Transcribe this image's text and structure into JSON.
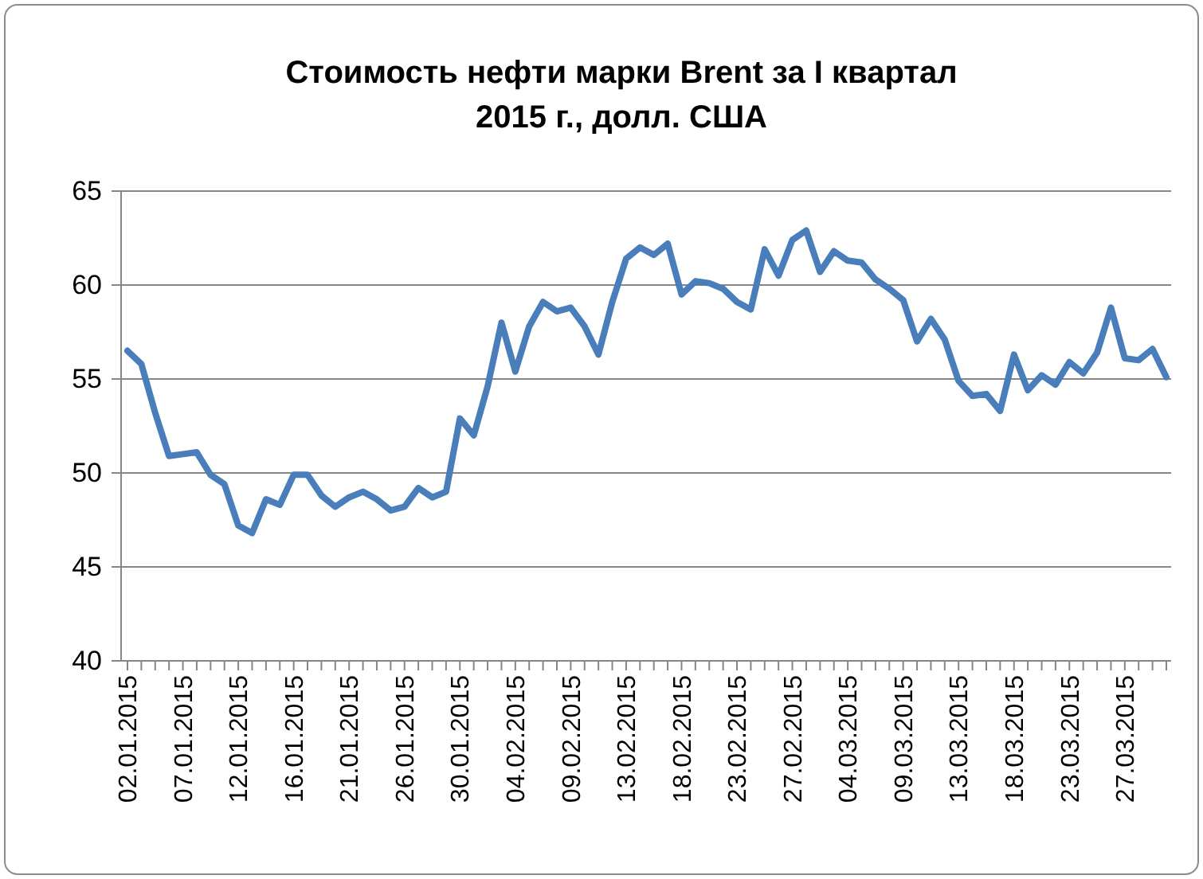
{
  "chart_data": {
    "type": "line",
    "title": "Стоимость нефти марки Brent за I квартал\n2015 г., долл. США",
    "categories": [
      "02.01.2015",
      null,
      null,
      null,
      "07.01.2015",
      null,
      null,
      null,
      "12.01.2015",
      null,
      null,
      null,
      "16.01.2015",
      null,
      null,
      null,
      "21.01.2015",
      null,
      null,
      null,
      "26.01.2015",
      null,
      null,
      null,
      "30.01.2015",
      null,
      null,
      null,
      "04.02.2015",
      null,
      null,
      null,
      "09.02.2015",
      null,
      null,
      null,
      "13.02.2015",
      null,
      null,
      null,
      "18.02.2015",
      null,
      null,
      null,
      "23.02.2015",
      null,
      null,
      null,
      "27.02.2015",
      null,
      null,
      null,
      "04.03.2015",
      null,
      null,
      null,
      "09.03.2015",
      null,
      null,
      null,
      "13.03.2015",
      null,
      null,
      null,
      "18.03.2015",
      null,
      null,
      null,
      "23.03.2015",
      null,
      null,
      null,
      "27.03.2015",
      null,
      null,
      null
    ],
    "series": [
      {
        "color": "#4a7ebb",
        "values": [
          56.5,
          55.8,
          53.2,
          50.9,
          51.0,
          51.1,
          49.9,
          49.4,
          47.2,
          46.8,
          48.6,
          48.3,
          49.9,
          49.9,
          48.8,
          48.2,
          48.7,
          49.0,
          48.6,
          48.0,
          48.2,
          49.2,
          48.7,
          49.0,
          52.9,
          52.0,
          54.6,
          58.0,
          55.4,
          57.8,
          59.1,
          58.6,
          58.8,
          57.8,
          56.3,
          59.1,
          61.4,
          62.0,
          61.6,
          62.2,
          59.5,
          60.2,
          60.1,
          59.8,
          59.1,
          58.7,
          61.9,
          60.5,
          62.4,
          62.9,
          60.7,
          61.8,
          61.3,
          61.2,
          60.3,
          59.8,
          59.2,
          57.0,
          58.2,
          57.1,
          54.9,
          54.1,
          54.2,
          53.3,
          56.3,
          54.4,
          55.2,
          54.7,
          55.9,
          55.3,
          56.4,
          58.8,
          56.1,
          56.0,
          56.6,
          55.1
        ]
      }
    ],
    "ylim": [
      40,
      65
    ],
    "yticks": [
      40,
      45,
      50,
      55,
      60,
      65
    ],
    "grid": "y",
    "marker": "none",
    "line_style": "solid"
  }
}
